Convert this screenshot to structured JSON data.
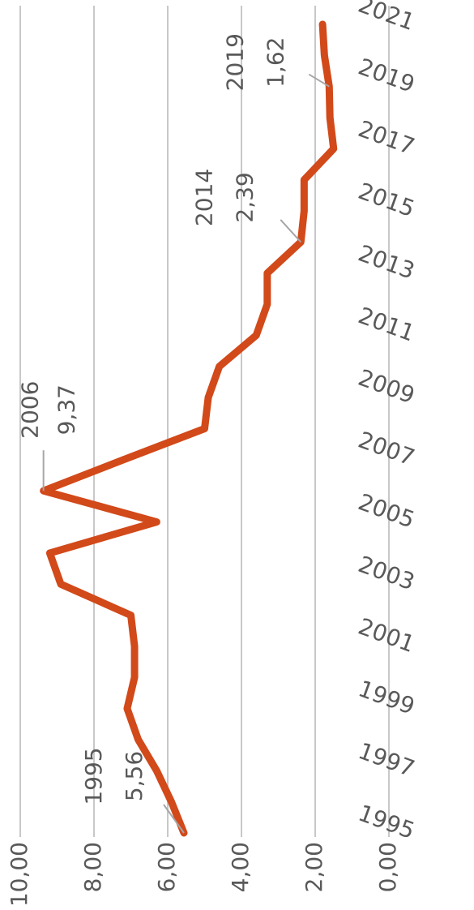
{
  "chart_data": {
    "type": "line",
    "categories": [
      "1995",
      null,
      "1997",
      null,
      "1999",
      null,
      "2001",
      null,
      "2003",
      null,
      "2005",
      null,
      "2007",
      null,
      "2009",
      null,
      "2011",
      null,
      "2013",
      null,
      "2015",
      null,
      "2017",
      null,
      "2019",
      null,
      "2021"
    ],
    "series": [
      {
        "color": "#d2491a",
        "values": [
          5.56,
          5.9,
          6.3,
          6.8,
          7.1,
          6.9,
          6.9,
          7.0,
          8.9,
          9.2,
          6.3,
          9.37,
          7.2,
          5.0,
          4.9,
          4.6,
          3.6,
          3.3,
          3.3,
          2.39,
          2.3,
          2.3,
          1.5,
          1.6,
          1.62,
          1.75,
          1.8
        ],
        "value_labels": [
          "5,56",
          null,
          null,
          null,
          null,
          null,
          null,
          null,
          null,
          null,
          null,
          "9,37",
          null,
          null,
          null,
          null,
          null,
          null,
          null,
          "2,39",
          null,
          null,
          null,
          null,
          "1,62",
          null,
          null
        ],
        "annotations": [
          "1995",
          null,
          null,
          null,
          null,
          null,
          null,
          null,
          null,
          null,
          null,
          "2006",
          null,
          null,
          null,
          null,
          null,
          null,
          null,
          "2014",
          null,
          null,
          null,
          null,
          "2019",
          null,
          null
        ]
      }
    ],
    "ylim": [
      0,
      10
    ],
    "yticks": [
      {
        "value": 0,
        "label": "0,00"
      },
      {
        "value": 2,
        "label": "2,00"
      },
      {
        "value": 4,
        "label": "4,00"
      },
      {
        "value": 6,
        "label": "6,00"
      },
      {
        "value": 8,
        "label": "8,00"
      },
      {
        "value": 10,
        "label": "10,00"
      }
    ],
    "grid": true
  }
}
